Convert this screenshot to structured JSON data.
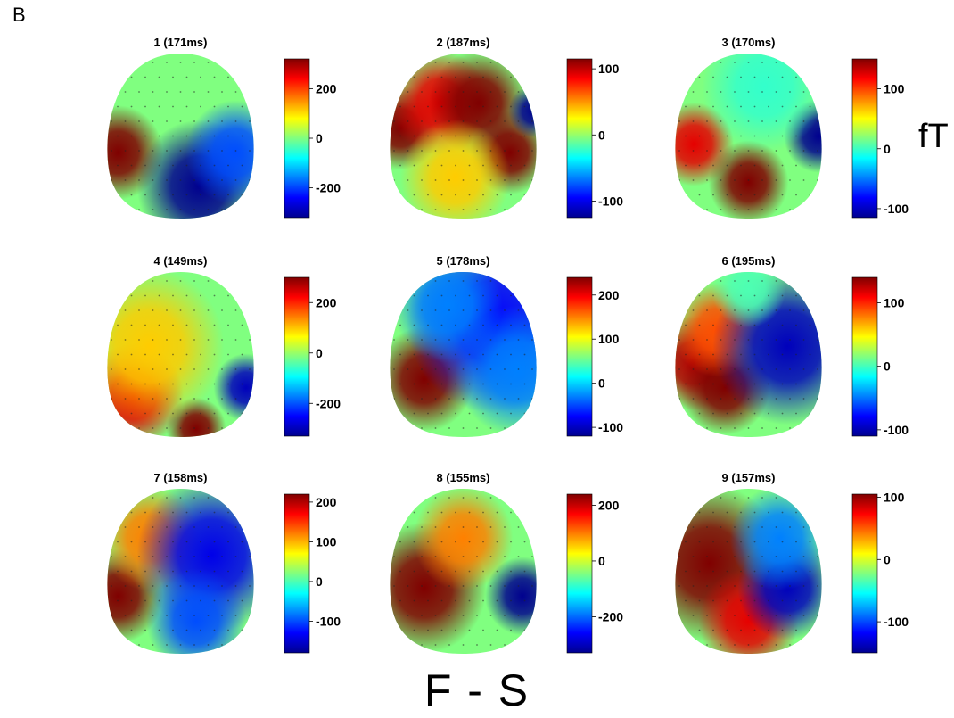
{
  "figure": {
    "panel_letter": "B",
    "unit_label": "fT",
    "condition_label": "F - S"
  },
  "colors": {
    "colormap": [
      "#00008f",
      "#0000ff",
      "#0080ff",
      "#00ffff",
      "#80ff80",
      "#ffff00",
      "#ff8000",
      "#ff0000",
      "#800000"
    ]
  },
  "chart_data": [
    {
      "type": "heatmap",
      "title": "1 (171ms)",
      "colorbar": {
        "ticks": [
          "200",
          "0",
          "-200"
        ],
        "tick_values": [
          200,
          0,
          -200
        ],
        "range": [
          -320,
          320
        ]
      },
      "blobs": [
        {
          "x": 0.1,
          "y": 0.6,
          "v": 1.0,
          "r": 0.18
        },
        {
          "x": 0.62,
          "y": 0.8,
          "v": -1.0,
          "r": 0.25
        },
        {
          "x": 0.85,
          "y": 0.6,
          "v": -0.6,
          "r": 0.2
        }
      ]
    },
    {
      "type": "heatmap",
      "title": "2 (187ms)",
      "colorbar": {
        "ticks": [
          "100",
          "0",
          "-100"
        ],
        "tick_values": [
          100,
          0,
          -100
        ],
        "range": [
          -125,
          115
        ]
      },
      "blobs": [
        {
          "x": 0.1,
          "y": 0.45,
          "v": 1.0,
          "r": 0.16
        },
        {
          "x": 0.35,
          "y": 0.3,
          "v": 0.8,
          "r": 0.2
        },
        {
          "x": 0.6,
          "y": 0.3,
          "v": 1.0,
          "r": 0.2
        },
        {
          "x": 0.8,
          "y": 0.6,
          "v": 1.0,
          "r": 0.16
        },
        {
          "x": 0.95,
          "y": 0.35,
          "v": -1.0,
          "r": 0.1
        },
        {
          "x": 0.45,
          "y": 0.75,
          "v": 0.35,
          "r": 0.22
        }
      ]
    },
    {
      "type": "heatmap",
      "title": "3 (170ms)",
      "colorbar": {
        "ticks": [
          "100",
          "0",
          "-100"
        ],
        "tick_values": [
          100,
          0,
          -100
        ],
        "range": [
          -115,
          150
        ]
      },
      "blobs": [
        {
          "x": 0.15,
          "y": 0.55,
          "v": 0.8,
          "r": 0.16
        },
        {
          "x": 0.5,
          "y": 0.78,
          "v": 1.0,
          "r": 0.16
        },
        {
          "x": 0.95,
          "y": 0.5,
          "v": -1.0,
          "r": 0.14
        },
        {
          "x": 0.6,
          "y": 0.2,
          "v": -0.15,
          "r": 0.25
        }
      ]
    },
    {
      "type": "heatmap",
      "title": "4 (149ms)",
      "colorbar": {
        "ticks": [
          "200",
          "0",
          "-200"
        ],
        "tick_values": [
          200,
          0,
          -200
        ],
        "range": [
          -330,
          300
        ]
      },
      "blobs": [
        {
          "x": 0.2,
          "y": 0.75,
          "v": 0.8,
          "r": 0.2
        },
        {
          "x": 0.6,
          "y": 0.95,
          "v": 1.0,
          "r": 0.12
        },
        {
          "x": 0.92,
          "y": 0.7,
          "v": -0.9,
          "r": 0.13
        },
        {
          "x": 0.3,
          "y": 0.45,
          "v": 0.35,
          "r": 0.3
        }
      ]
    },
    {
      "type": "heatmap",
      "title": "5 (178ms)",
      "colorbar": {
        "ticks": [
          "200",
          "100",
          "0",
          "-100"
        ],
        "tick_values": [
          200,
          100,
          0,
          -100
        ],
        "range": [
          -120,
          240
        ]
      },
      "blobs": [
        {
          "x": 0.25,
          "y": 0.65,
          "v": 1.0,
          "r": 0.2
        },
        {
          "x": 0.7,
          "y": 0.3,
          "v": -0.75,
          "r": 0.35
        },
        {
          "x": 0.85,
          "y": 0.6,
          "v": -0.5,
          "r": 0.25
        },
        {
          "x": 0.4,
          "y": 0.2,
          "v": -0.5,
          "r": 0.22
        }
      ]
    },
    {
      "type": "heatmap",
      "title": "6 (195ms)",
      "colorbar": {
        "ticks": [
          "100",
          "0",
          "-100"
        ],
        "tick_values": [
          100,
          0,
          -100
        ],
        "range": [
          -110,
          140
        ]
      },
      "blobs": [
        {
          "x": 0.15,
          "y": 0.55,
          "v": 0.9,
          "r": 0.18
        },
        {
          "x": 0.35,
          "y": 0.7,
          "v": 1.0,
          "r": 0.18
        },
        {
          "x": 0.3,
          "y": 0.35,
          "v": 0.6,
          "r": 0.18
        },
        {
          "x": 0.75,
          "y": 0.45,
          "v": -0.9,
          "r": 0.3
        },
        {
          "x": 0.5,
          "y": 0.1,
          "v": -0.1,
          "r": 0.15
        }
      ]
    },
    {
      "type": "heatmap",
      "title": "7 (158ms)",
      "colorbar": {
        "ticks": [
          "200",
          "100",
          "0",
          "-100"
        ],
        "tick_values": [
          200,
          100,
          0,
          -100
        ],
        "range": [
          -180,
          220
        ]
      },
      "blobs": [
        {
          "x": 0.1,
          "y": 0.65,
          "v": 1.0,
          "r": 0.18
        },
        {
          "x": 0.3,
          "y": 0.3,
          "v": 0.5,
          "r": 0.2
        },
        {
          "x": 0.7,
          "y": 0.4,
          "v": -0.8,
          "r": 0.3
        },
        {
          "x": 0.6,
          "y": 0.8,
          "v": -0.6,
          "r": 0.2
        }
      ]
    },
    {
      "type": "heatmap",
      "title": "8 (155ms)",
      "colorbar": {
        "ticks": [
          "200",
          "0",
          "-200"
        ],
        "tick_values": [
          200,
          0,
          -200
        ],
        "range": [
          -330,
          240
        ]
      },
      "blobs": [
        {
          "x": 0.25,
          "y": 0.6,
          "v": 1.0,
          "r": 0.25
        },
        {
          "x": 0.5,
          "y": 0.3,
          "v": 0.5,
          "r": 0.2
        },
        {
          "x": 0.88,
          "y": 0.65,
          "v": -1.0,
          "r": 0.15
        }
      ]
    },
    {
      "type": "heatmap",
      "title": "9 (157ms)",
      "colorbar": {
        "ticks": [
          "100",
          "0",
          "-100"
        ],
        "tick_values": [
          100,
          0,
          -100
        ],
        "range": [
          -150,
          105
        ]
      },
      "blobs": [
        {
          "x": 0.25,
          "y": 0.45,
          "v": 1.0,
          "r": 0.3
        },
        {
          "x": 0.5,
          "y": 0.8,
          "v": 0.8,
          "r": 0.2
        },
        {
          "x": 0.75,
          "y": 0.6,
          "v": -0.9,
          "r": 0.2
        },
        {
          "x": 0.7,
          "y": 0.3,
          "v": -0.5,
          "r": 0.2
        }
      ]
    }
  ]
}
